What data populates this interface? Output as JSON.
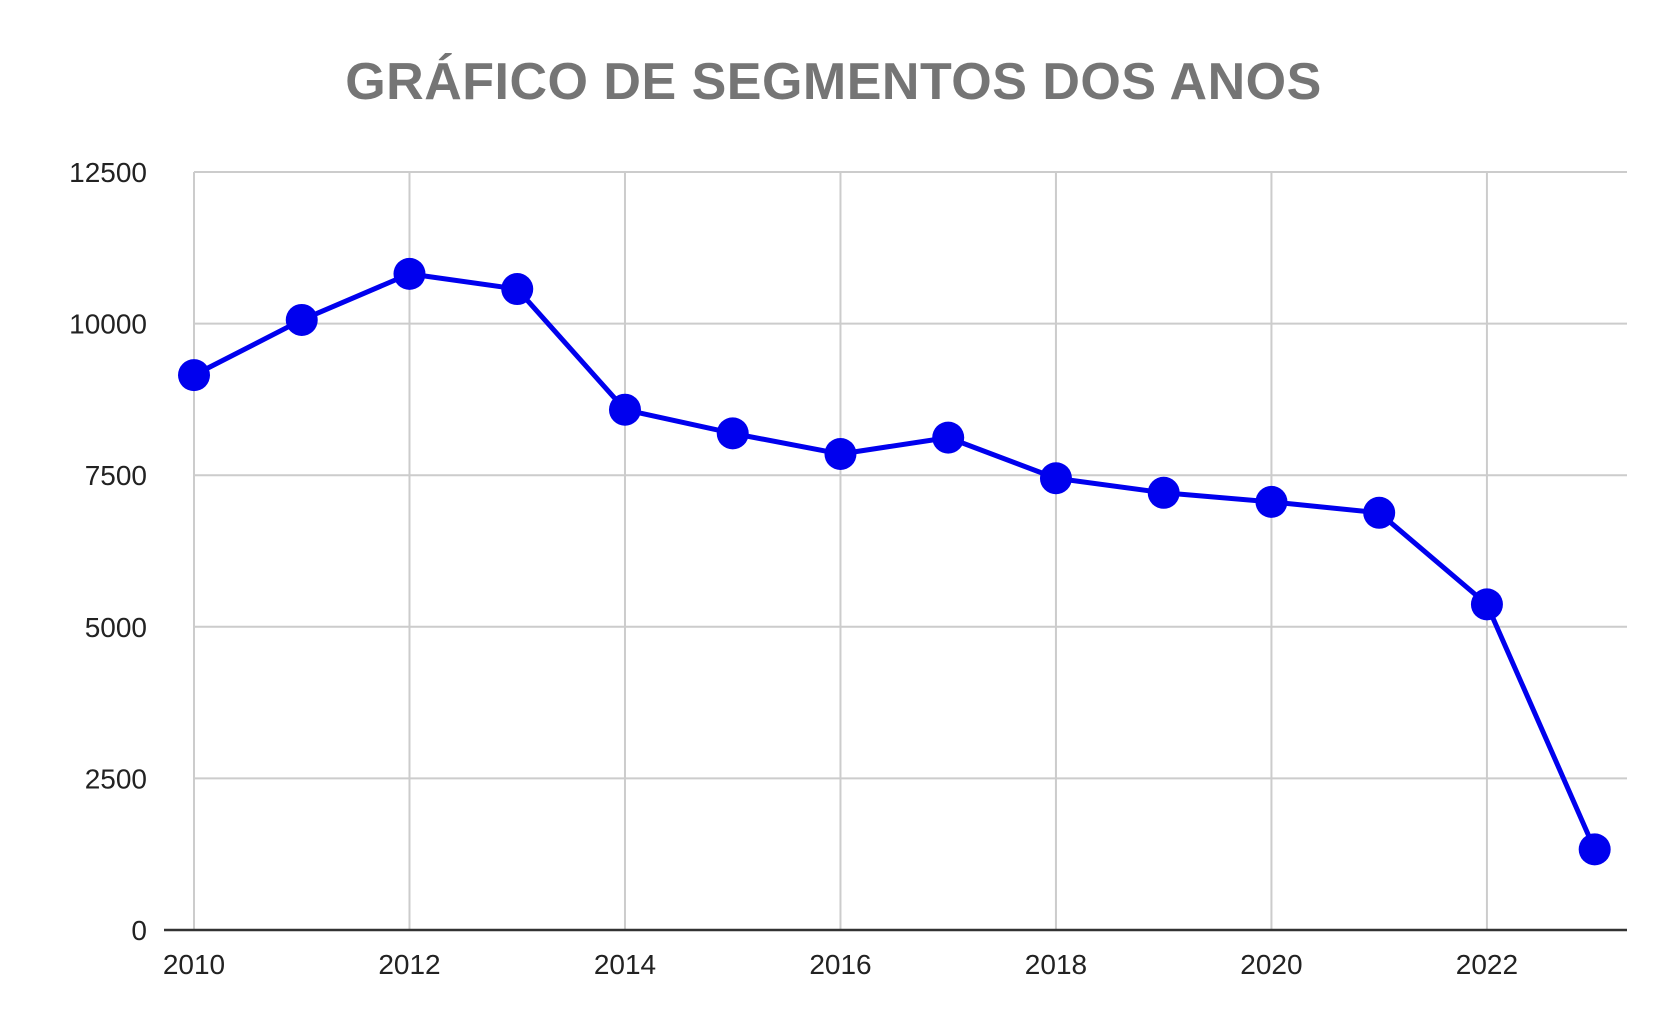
{
  "chart_data": {
    "type": "line",
    "title": "GRÁFICO DE SEGMENTOS DOS ANOS",
    "xlabel": "",
    "ylabel": "",
    "x": [
      2010,
      2011,
      2012,
      2013,
      2014,
      2015,
      2016,
      2017,
      2018,
      2019,
      2020,
      2021,
      2022,
      2023
    ],
    "series": [
      {
        "values": [
          9150,
          10060,
          10820,
          10570,
          8580,
          8190,
          7850,
          8120,
          7450,
          7210,
          7060,
          6880,
          5370,
          1330
        ]
      }
    ],
    "xlim": [
      2010,
      2023.3
    ],
    "ylim": [
      0,
      12500
    ],
    "x_ticks": [
      "2010",
      "2012",
      "2014",
      "2016",
      "2018",
      "2020",
      "2022"
    ],
    "y_ticks": [
      "0",
      "2500",
      "5000",
      "7500",
      "10000",
      "12500"
    ],
    "grid": true,
    "legend": "none",
    "line_color": "#0000ee",
    "grid_color": "#cccccc",
    "axis_color": "#333333"
  }
}
